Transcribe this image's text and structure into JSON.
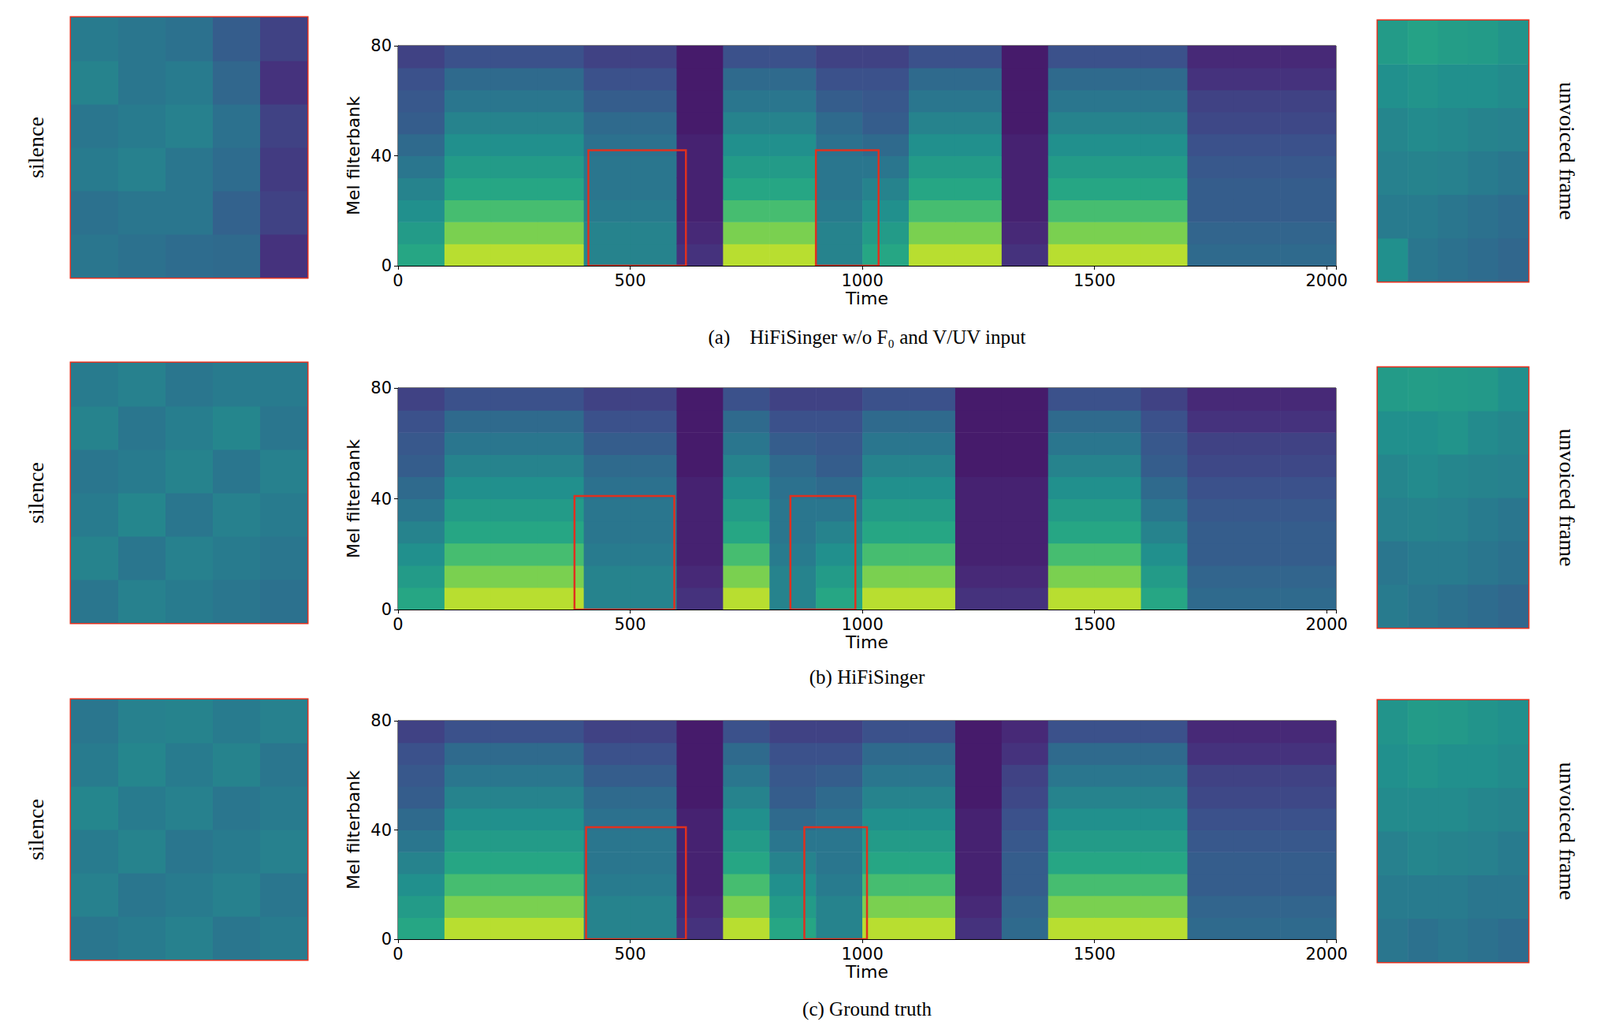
{
  "chart_data": [
    {
      "type": "heatmap",
      "title": "(a)    HiFiSinger w/o F₀ and V/UV input",
      "xlabel": "Time",
      "ylabel": "Mel filterbank",
      "xlim": [
        0,
        2020
      ],
      "xticks": [
        0,
        500,
        1000,
        1500,
        2000
      ],
      "ylim": [
        0,
        80
      ],
      "yticks": [
        0,
        40,
        80
      ],
      "zlim": [
        0,
        1
      ],
      "time_bins": [
        0,
        100,
        200,
        300,
        400,
        500,
        600,
        700,
        800,
        900,
        1000,
        1100,
        1200,
        1300,
        1400,
        1500,
        1600,
        1700,
        1800,
        1900,
        2020
      ],
      "mel_bins": [
        0,
        8,
        16,
        24,
        32,
        40,
        48,
        56,
        64,
        72,
        80
      ],
      "cells": [
        [
          0.6,
          0.55,
          0.5,
          0.45,
          0.4,
          0.35,
          0.3,
          0.28,
          0.25,
          0.2
        ],
        [
          0.9,
          0.8,
          0.7,
          0.6,
          0.55,
          0.5,
          0.45,
          0.4,
          0.35,
          0.25
        ],
        [
          0.9,
          0.8,
          0.7,
          0.6,
          0.55,
          0.5,
          0.45,
          0.4,
          0.35,
          0.25
        ],
        [
          0.9,
          0.8,
          0.7,
          0.6,
          0.55,
          0.5,
          0.45,
          0.4,
          0.35,
          0.25
        ],
        [
          0.45,
          0.45,
          0.42,
          0.4,
          0.4,
          0.38,
          0.35,
          0.3,
          0.25,
          0.2
        ],
        [
          0.45,
          0.45,
          0.42,
          0.4,
          0.4,
          0.38,
          0.35,
          0.3,
          0.25,
          0.2
        ],
        [
          0.15,
          0.12,
          0.1,
          0.1,
          0.1,
          0.1,
          0.08,
          0.08,
          0.08,
          0.08
        ],
        [
          0.9,
          0.8,
          0.7,
          0.6,
          0.55,
          0.5,
          0.45,
          0.4,
          0.35,
          0.25
        ],
        [
          0.9,
          0.8,
          0.7,
          0.6,
          0.55,
          0.5,
          0.45,
          0.4,
          0.35,
          0.25
        ],
        [
          0.45,
          0.45,
          0.42,
          0.4,
          0.4,
          0.38,
          0.35,
          0.3,
          0.25,
          0.2
        ],
        [
          0.6,
          0.55,
          0.5,
          0.45,
          0.4,
          0.35,
          0.3,
          0.28,
          0.25,
          0.2
        ],
        [
          0.9,
          0.8,
          0.7,
          0.6,
          0.55,
          0.5,
          0.45,
          0.4,
          0.35,
          0.25
        ],
        [
          0.9,
          0.8,
          0.7,
          0.6,
          0.55,
          0.5,
          0.45,
          0.4,
          0.35,
          0.25
        ],
        [
          0.15,
          0.12,
          0.1,
          0.1,
          0.1,
          0.1,
          0.08,
          0.08,
          0.08,
          0.08
        ],
        [
          0.9,
          0.8,
          0.7,
          0.6,
          0.55,
          0.5,
          0.45,
          0.4,
          0.35,
          0.25
        ],
        [
          0.9,
          0.8,
          0.7,
          0.6,
          0.55,
          0.5,
          0.45,
          0.4,
          0.35,
          0.25
        ],
        [
          0.9,
          0.8,
          0.7,
          0.6,
          0.55,
          0.5,
          0.45,
          0.4,
          0.35,
          0.25
        ],
        [
          0.35,
          0.33,
          0.3,
          0.3,
          0.28,
          0.25,
          0.22,
          0.2,
          0.15,
          0.12
        ],
        [
          0.35,
          0.33,
          0.3,
          0.3,
          0.28,
          0.25,
          0.22,
          0.2,
          0.15,
          0.12
        ],
        [
          0.35,
          0.33,
          0.3,
          0.3,
          0.28,
          0.25,
          0.22,
          0.2,
          0.15,
          0.12
        ]
      ],
      "boxes": [
        {
          "x": [
            410,
            620
          ],
          "y": [
            0,
            42
          ]
        },
        {
          "x": [
            900,
            1035
          ],
          "y": [
            0,
            42
          ]
        }
      ],
      "insets": [
        {
          "label": "silence",
          "cells": [
            [
              0.4,
              0.38,
              0.42,
              0.4,
              0.45,
              0.42
            ],
            [
              0.38,
              0.4,
              0.44,
              0.42,
              0.4,
              0.4
            ],
            [
              0.36,
              0.4,
              0.4,
              0.44,
              0.42,
              0.38
            ],
            [
              0.35,
              0.32,
              0.36,
              0.38,
              0.34,
              0.3
            ],
            [
              0.15,
              0.2,
              0.18,
              0.2,
              0.15,
              0.2
            ]
          ]
        },
        {
          "label": "unvoiced frame",
          "cells": [
            [
              0.5,
              0.42,
              0.44,
              0.46,
              0.5,
              0.55
            ],
            [
              0.4,
              0.42,
              0.45,
              0.48,
              0.52,
              0.58
            ],
            [
              0.38,
              0.4,
              0.44,
              0.47,
              0.5,
              0.56
            ],
            [
              0.36,
              0.38,
              0.42,
              0.45,
              0.5,
              0.55
            ],
            [
              0.34,
              0.36,
              0.4,
              0.44,
              0.48,
              0.52
            ]
          ]
        }
      ]
    },
    {
      "type": "heatmap",
      "title": "(b) HiFiSinger",
      "xlabel": "Time",
      "ylabel": "Mel filterbank",
      "xlim": [
        0,
        2020
      ],
      "xticks": [
        0,
        500,
        1000,
        1500,
        2000
      ],
      "ylim": [
        0,
        80
      ],
      "yticks": [
        0,
        40,
        80
      ],
      "zlim": [
        0,
        1
      ],
      "time_bins": [
        0,
        100,
        200,
        300,
        400,
        500,
        600,
        700,
        800,
        900,
        1000,
        1100,
        1200,
        1300,
        1400,
        1500,
        1600,
        1700,
        1800,
        1900,
        2020
      ],
      "mel_bins": [
        0,
        8,
        16,
        24,
        32,
        40,
        48,
        56,
        64,
        72,
        80
      ],
      "cells": [
        [
          0.6,
          0.55,
          0.5,
          0.45,
          0.4,
          0.35,
          0.3,
          0.28,
          0.25,
          0.2
        ],
        [
          0.9,
          0.8,
          0.7,
          0.6,
          0.55,
          0.5,
          0.45,
          0.4,
          0.35,
          0.25
        ],
        [
          0.9,
          0.8,
          0.7,
          0.6,
          0.55,
          0.5,
          0.45,
          0.4,
          0.35,
          0.25
        ],
        [
          0.9,
          0.8,
          0.7,
          0.6,
          0.55,
          0.5,
          0.45,
          0.4,
          0.35,
          0.25
        ],
        [
          0.45,
          0.45,
          0.42,
          0.4,
          0.4,
          0.38,
          0.35,
          0.3,
          0.25,
          0.2
        ],
        [
          0.45,
          0.45,
          0.42,
          0.4,
          0.4,
          0.38,
          0.35,
          0.3,
          0.25,
          0.2
        ],
        [
          0.15,
          0.12,
          0.1,
          0.1,
          0.1,
          0.1,
          0.08,
          0.08,
          0.08,
          0.08
        ],
        [
          0.9,
          0.8,
          0.7,
          0.6,
          0.55,
          0.5,
          0.45,
          0.4,
          0.35,
          0.25
        ],
        [
          0.45,
          0.45,
          0.42,
          0.4,
          0.4,
          0.38,
          0.35,
          0.3,
          0.25,
          0.2
        ],
        [
          0.6,
          0.55,
          0.5,
          0.45,
          0.4,
          0.35,
          0.3,
          0.28,
          0.25,
          0.2
        ],
        [
          0.9,
          0.8,
          0.7,
          0.6,
          0.55,
          0.5,
          0.45,
          0.4,
          0.35,
          0.25
        ],
        [
          0.9,
          0.8,
          0.7,
          0.6,
          0.55,
          0.5,
          0.45,
          0.4,
          0.35,
          0.25
        ],
        [
          0.15,
          0.12,
          0.1,
          0.1,
          0.1,
          0.1,
          0.08,
          0.08,
          0.08,
          0.08
        ],
        [
          0.15,
          0.12,
          0.1,
          0.1,
          0.1,
          0.1,
          0.08,
          0.08,
          0.08,
          0.08
        ],
        [
          0.9,
          0.8,
          0.7,
          0.6,
          0.55,
          0.5,
          0.45,
          0.4,
          0.35,
          0.25
        ],
        [
          0.9,
          0.8,
          0.7,
          0.6,
          0.55,
          0.5,
          0.45,
          0.4,
          0.35,
          0.25
        ],
        [
          0.6,
          0.55,
          0.5,
          0.45,
          0.4,
          0.35,
          0.3,
          0.28,
          0.25,
          0.2
        ],
        [
          0.35,
          0.33,
          0.3,
          0.3,
          0.28,
          0.25,
          0.22,
          0.2,
          0.15,
          0.12
        ],
        [
          0.35,
          0.33,
          0.3,
          0.3,
          0.28,
          0.25,
          0.22,
          0.2,
          0.15,
          0.12
        ],
        [
          0.35,
          0.33,
          0.3,
          0.3,
          0.28,
          0.25,
          0.22,
          0.2,
          0.15,
          0.12
        ]
      ],
      "boxes": [
        {
          "x": [
            380,
            595
          ],
          "y": [
            0,
            41
          ]
        },
        {
          "x": [
            845,
            985
          ],
          "y": [
            0,
            41
          ]
        }
      ],
      "insets": [
        {
          "label": "silence",
          "cells": [
            [
              0.4,
              0.45,
              0.42,
              0.4,
              0.45,
              0.42
            ],
            [
              0.44,
              0.4,
              0.46,
              0.42,
              0.4,
              0.44
            ],
            [
              0.42,
              0.44,
              0.4,
              0.45,
              0.43,
              0.4
            ],
            [
              0.4,
              0.42,
              0.44,
              0.4,
              0.46,
              0.42
            ],
            [
              0.38,
              0.4,
              0.42,
              0.44,
              0.4,
              0.42
            ]
          ]
        },
        {
          "label": "unvoiced frame",
          "cells": [
            [
              0.42,
              0.4,
              0.44,
              0.46,
              0.5,
              0.55
            ],
            [
              0.4,
              0.42,
              0.45,
              0.48,
              0.5,
              0.56
            ],
            [
              0.38,
              0.42,
              0.44,
              0.46,
              0.52,
              0.55
            ],
            [
              0.36,
              0.4,
              0.42,
              0.45,
              0.48,
              0.54
            ],
            [
              0.34,
              0.38,
              0.4,
              0.44,
              0.46,
              0.5
            ]
          ]
        }
      ]
    },
    {
      "type": "heatmap",
      "title": "(c) Ground truth",
      "xlabel": "Time",
      "ylabel": "Mel filterbank",
      "xlim": [
        0,
        2020
      ],
      "xticks": [
        0,
        500,
        1000,
        1500,
        2000
      ],
      "ylim": [
        0,
        80
      ],
      "yticks": [
        0,
        40,
        80
      ],
      "zlim": [
        0,
        1
      ],
      "time_bins": [
        0,
        100,
        200,
        300,
        400,
        500,
        600,
        700,
        800,
        900,
        1000,
        1100,
        1200,
        1300,
        1400,
        1500,
        1600,
        1700,
        1800,
        1900,
        2020
      ],
      "mel_bins": [
        0,
        8,
        16,
        24,
        32,
        40,
        48,
        56,
        64,
        72,
        80
      ],
      "cells": [
        [
          0.6,
          0.55,
          0.5,
          0.45,
          0.4,
          0.35,
          0.3,
          0.28,
          0.25,
          0.2
        ],
        [
          0.9,
          0.8,
          0.7,
          0.6,
          0.55,
          0.5,
          0.45,
          0.4,
          0.35,
          0.25
        ],
        [
          0.9,
          0.8,
          0.7,
          0.6,
          0.55,
          0.5,
          0.45,
          0.4,
          0.35,
          0.25
        ],
        [
          0.9,
          0.8,
          0.7,
          0.6,
          0.55,
          0.5,
          0.45,
          0.4,
          0.35,
          0.25
        ],
        [
          0.45,
          0.45,
          0.42,
          0.4,
          0.4,
          0.38,
          0.35,
          0.3,
          0.25,
          0.2
        ],
        [
          0.45,
          0.45,
          0.42,
          0.4,
          0.4,
          0.38,
          0.35,
          0.3,
          0.25,
          0.2
        ],
        [
          0.15,
          0.12,
          0.1,
          0.1,
          0.1,
          0.1,
          0.08,
          0.08,
          0.08,
          0.08
        ],
        [
          0.9,
          0.8,
          0.7,
          0.6,
          0.55,
          0.5,
          0.45,
          0.4,
          0.35,
          0.25
        ],
        [
          0.6,
          0.55,
          0.5,
          0.45,
          0.4,
          0.35,
          0.3,
          0.28,
          0.25,
          0.2
        ],
        [
          0.45,
          0.45,
          0.42,
          0.4,
          0.4,
          0.38,
          0.35,
          0.3,
          0.25,
          0.2
        ],
        [
          0.9,
          0.8,
          0.7,
          0.6,
          0.55,
          0.5,
          0.45,
          0.4,
          0.35,
          0.25
        ],
        [
          0.9,
          0.8,
          0.7,
          0.6,
          0.55,
          0.5,
          0.45,
          0.4,
          0.35,
          0.25
        ],
        [
          0.15,
          0.12,
          0.1,
          0.1,
          0.1,
          0.1,
          0.08,
          0.08,
          0.08,
          0.08
        ],
        [
          0.35,
          0.33,
          0.3,
          0.3,
          0.28,
          0.25,
          0.22,
          0.2,
          0.15,
          0.12
        ],
        [
          0.9,
          0.8,
          0.7,
          0.6,
          0.55,
          0.5,
          0.45,
          0.4,
          0.35,
          0.25
        ],
        [
          0.9,
          0.8,
          0.7,
          0.6,
          0.55,
          0.5,
          0.45,
          0.4,
          0.35,
          0.25
        ],
        [
          0.9,
          0.8,
          0.7,
          0.6,
          0.55,
          0.5,
          0.45,
          0.4,
          0.35,
          0.25
        ],
        [
          0.35,
          0.33,
          0.3,
          0.3,
          0.28,
          0.25,
          0.22,
          0.2,
          0.15,
          0.12
        ],
        [
          0.35,
          0.33,
          0.3,
          0.3,
          0.28,
          0.25,
          0.22,
          0.2,
          0.15,
          0.12
        ],
        [
          0.35,
          0.33,
          0.3,
          0.3,
          0.28,
          0.25,
          0.22,
          0.2,
          0.15,
          0.12
        ]
      ],
      "boxes": [
        {
          "x": [
            405,
            620
          ],
          "y": [
            0,
            41
          ]
        },
        {
          "x": [
            875,
            1010
          ],
          "y": [
            0,
            41
          ]
        }
      ],
      "insets": [
        {
          "label": "silence",
          "cells": [
            [
              0.4,
              0.44,
              0.42,
              0.46,
              0.42,
              0.4
            ],
            [
              0.42,
              0.4,
              0.45,
              0.42,
              0.46,
              0.44
            ],
            [
              0.44,
              0.42,
              0.4,
              0.44,
              0.42,
              0.45
            ],
            [
              0.4,
              0.44,
              0.42,
              0.4,
              0.45,
              0.42
            ],
            [
              0.42,
              0.4,
              0.44,
              0.42,
              0.4,
              0.44
            ]
          ]
        },
        {
          "label": "unvoiced frame",
          "cells": [
            [
              0.4,
              0.42,
              0.44,
              0.48,
              0.5,
              0.52
            ],
            [
              0.38,
              0.42,
              0.46,
              0.48,
              0.52,
              0.55
            ],
            [
              0.4,
              0.42,
              0.45,
              0.48,
              0.5,
              0.54
            ],
            [
              0.38,
              0.4,
              0.44,
              0.46,
              0.5,
              0.52
            ],
            [
              0.36,
              0.4,
              0.42,
              0.45,
              0.48,
              0.5
            ]
          ]
        }
      ]
    }
  ]
}
